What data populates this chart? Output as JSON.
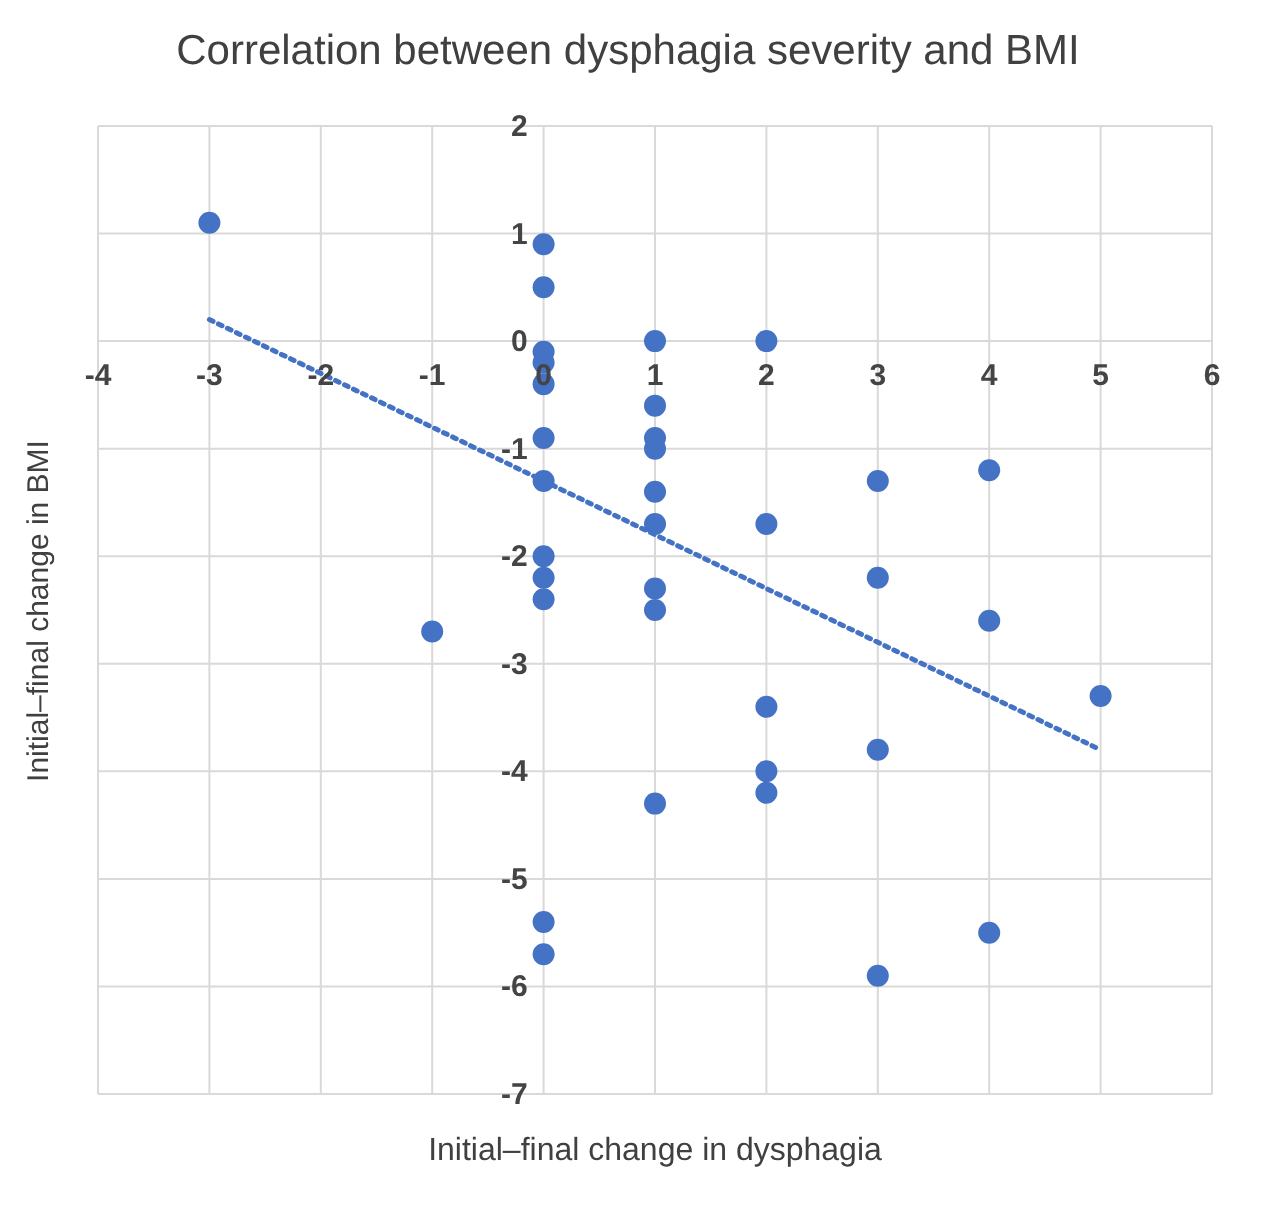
{
  "chart_data": {
    "type": "scatter",
    "title": "Correlation between dysphagia severity and BMI",
    "xlabel": "Initial–final change in dysphagia",
    "ylabel": "Initial–final change in BMI",
    "xlim": [
      -4,
      6
    ],
    "xticks": [
      -4,
      -3,
      -2,
      -1,
      0,
      1,
      2,
      3,
      4,
      5,
      6
    ],
    "ylim": [
      -7,
      2
    ],
    "yticks": [
      -7,
      -6,
      -5,
      -4,
      -3,
      -2,
      -1,
      0,
      1,
      2
    ],
    "grid": true,
    "legend": false,
    "series": [
      {
        "color": "#4472c4",
        "marker": "circle",
        "x": [
          -3,
          -1,
          0,
          0,
          0,
          0,
          0,
          0,
          0,
          0,
          0,
          0,
          0,
          0,
          1,
          1,
          1,
          1,
          1,
          1,
          1,
          1,
          1,
          2,
          2,
          2,
          2,
          2,
          3,
          3,
          3,
          3,
          4,
          4,
          4,
          5
        ],
        "values": [
          1.1,
          -2.7,
          0.9,
          0.5,
          -0.1,
          -0.2,
          -0.4,
          -0.9,
          -1.3,
          -2.0,
          -2.2,
          -2.4,
          -5.4,
          -5.7,
          0,
          -0.6,
          -0.9,
          -1.0,
          -1.4,
          -1.7,
          -2.3,
          -2.5,
          -4.3,
          0,
          -1.7,
          -3.4,
          -4.0,
          -4.2,
          -1.3,
          -2.2,
          -3.8,
          -5.9,
          -1.2,
          -2.6,
          -5.5,
          -3.3
        ]
      },
      {
        "type": "line",
        "color": "#4472c4",
        "line_style": "dotted",
        "x": [
          -3,
          5
        ],
        "values": [
          0.2,
          -3.8
        ]
      }
    ]
  }
}
